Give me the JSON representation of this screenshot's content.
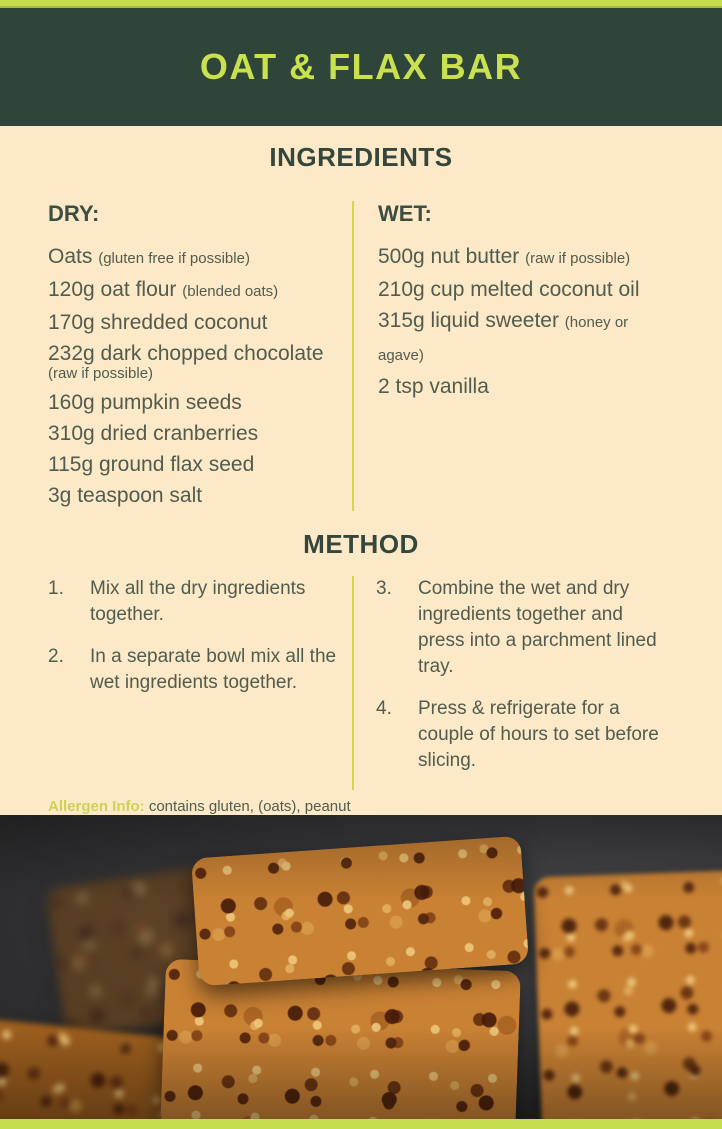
{
  "page": {
    "title": "OAT & FLAX BAR",
    "accent_color": "#c6dd4d",
    "header_bg": "#2f4539",
    "body_bg": "#fce9c8",
    "text_color": "#515c4e",
    "heading_color": "#35463c"
  },
  "ingredients": {
    "heading": "INGREDIENTS",
    "dry": {
      "heading": "DRY:",
      "items": [
        {
          "main": "Oats",
          "note": "(gluten free if possible)"
        },
        {
          "main": "120g oat flour",
          "note": "(blended oats)"
        },
        {
          "main": "170g shredded coconut",
          "note": ""
        },
        {
          "main": "232g dark chopped chocolate",
          "note": "(raw if possible)"
        },
        {
          "main": "160g pumpkin seeds",
          "note": ""
        },
        {
          "main": "310g dried cranberries",
          "note": ""
        },
        {
          "main": "115g ground flax seed",
          "note": ""
        },
        {
          "main": "3g teaspoon salt",
          "note": ""
        }
      ]
    },
    "wet": {
      "heading": "WET:",
      "items": [
        {
          "main": "500g nut butter",
          "note": "(raw if possible)"
        },
        {
          "main": "210g cup melted coconut oil",
          "note": ""
        },
        {
          "main": "315g liquid sweeter",
          "note": "(honey or agave)"
        },
        {
          "main": "2 tsp vanilla",
          "note": ""
        }
      ]
    }
  },
  "method": {
    "heading": "METHOD",
    "steps_left": [
      {
        "num": "1.",
        "text": "Mix all the dry ingredients together."
      },
      {
        "num": "2.",
        "text": "In a separate bowl mix all the wet ingredients together."
      }
    ],
    "steps_right": [
      {
        "num": "3.",
        "text": "Combine the wet and dry ingredients together and press into a parchment lined tray."
      },
      {
        "num": "4.",
        "text": "Press & refrigerate for a couple of hours to set before slicing."
      }
    ]
  },
  "allergen": {
    "label": "Allergen Info:",
    "text": "contains gluten, (oats), peanut"
  },
  "photo": {
    "description": "stacked oat and flax bars with dried cranberries and pumpkin seeds on dark background"
  }
}
